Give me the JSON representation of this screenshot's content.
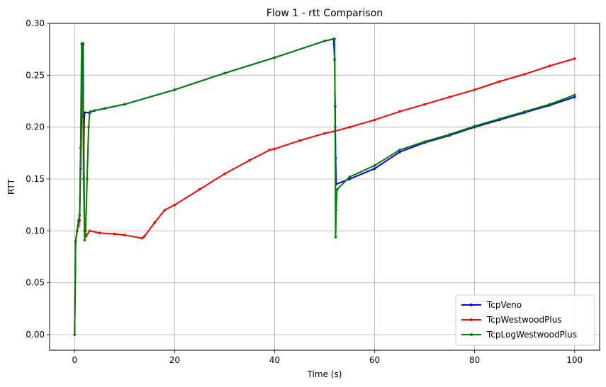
{
  "chart_data": {
    "type": "line",
    "title": "Flow 1 - rtt Comparison",
    "xlabel": "Time (s)",
    "ylabel": "RTT",
    "xlim": [
      -5,
      105
    ],
    "ylim": [
      -0.015,
      0.3
    ],
    "xticks": [
      0,
      20,
      40,
      60,
      80,
      100
    ],
    "xtick_labels": [
      "0",
      "20",
      "40",
      "60",
      "80",
      "100"
    ],
    "yticks": [
      0.0,
      0.05,
      0.1,
      0.15,
      0.2,
      0.25,
      0.3
    ],
    "ytick_labels": [
      "0.00",
      "0.05",
      "0.10",
      "0.15",
      "0.20",
      "0.25",
      "0.30"
    ],
    "grid": true,
    "legend_position": "bottom-right",
    "series": [
      {
        "name": "TcpVeno",
        "color": "#0000ff",
        "points": [
          [
            0,
            0
          ],
          [
            0.2,
            0.09
          ],
          [
            0.5,
            0.1
          ],
          [
            0.8,
            0.11
          ],
          [
            1.0,
            0.115
          ],
          [
            1.2,
            0.16
          ],
          [
            1.4,
            0.21
          ],
          [
            1.5,
            0.28
          ],
          [
            1.6,
            0.26
          ],
          [
            1.7,
            0.28
          ],
          [
            1.8,
            0.15
          ],
          [
            1.9,
            0.2
          ],
          [
            2.0,
            0.214
          ],
          [
            3,
            0.214
          ],
          [
            4,
            0.216
          ],
          [
            6,
            0.218
          ],
          [
            10,
            0.222
          ],
          [
            20,
            0.236
          ],
          [
            30,
            0.252
          ],
          [
            40,
            0.267
          ],
          [
            50,
            0.283
          ],
          [
            51.8,
            0.285
          ],
          [
            52.0,
            0.265
          ],
          [
            52.1,
            0.22
          ],
          [
            52.2,
            0.17
          ],
          [
            52.3,
            0.145
          ],
          [
            55,
            0.15
          ],
          [
            60,
            0.16
          ],
          [
            65,
            0.176
          ],
          [
            70,
            0.185
          ],
          [
            75,
            0.192
          ],
          [
            80,
            0.2
          ],
          [
            85,
            0.207
          ],
          [
            90,
            0.214
          ],
          [
            95,
            0.221
          ],
          [
            100,
            0.229
          ]
        ]
      },
      {
        "name": "TcpWestwoodPlus",
        "color": "#ff0000",
        "points": [
          [
            0,
            0
          ],
          [
            0.2,
            0.09
          ],
          [
            0.5,
            0.1
          ],
          [
            0.8,
            0.105
          ],
          [
            1.0,
            0.11
          ],
          [
            1.3,
            0.2
          ],
          [
            1.5,
            0.28
          ],
          [
            1.8,
            0.2
          ],
          [
            2.0,
            0.1
          ],
          [
            2.3,
            0.095
          ],
          [
            3,
            0.1
          ],
          [
            5,
            0.098
          ],
          [
            8,
            0.097
          ],
          [
            10,
            0.096
          ],
          [
            13.5,
            0.093
          ],
          [
            14,
            0.095
          ],
          [
            16,
            0.108
          ],
          [
            18,
            0.12
          ],
          [
            20,
            0.125
          ],
          [
            25,
            0.14
          ],
          [
            30,
            0.155
          ],
          [
            35,
            0.168
          ],
          [
            39,
            0.178
          ],
          [
            40,
            0.179
          ],
          [
            45,
            0.187
          ],
          [
            50,
            0.194
          ],
          [
            52,
            0.196
          ],
          [
            55,
            0.2
          ],
          [
            60,
            0.207
          ],
          [
            65,
            0.215
          ],
          [
            70,
            0.222
          ],
          [
            75,
            0.229
          ],
          [
            80,
            0.236
          ],
          [
            85,
            0.244
          ],
          [
            90,
            0.251
          ],
          [
            95,
            0.259
          ],
          [
            100,
            0.266
          ]
        ]
      },
      {
        "name": "TcpLogWestwoodPlus",
        "color": "#008000",
        "points": [
          [
            0,
            0
          ],
          [
            0.2,
            0.09
          ],
          [
            0.5,
            0.1
          ],
          [
            0.8,
            0.11
          ],
          [
            1.0,
            0.115
          ],
          [
            1.2,
            0.18
          ],
          [
            1.4,
            0.28
          ],
          [
            1.6,
            0.281
          ],
          [
            1.8,
            0.15
          ],
          [
            2.0,
            0.091
          ],
          [
            2.2,
            0.1
          ],
          [
            2.5,
            0.15
          ],
          [
            2.8,
            0.2
          ],
          [
            3.0,
            0.213
          ],
          [
            3.2,
            0.215
          ],
          [
            4,
            0.216
          ],
          [
            6,
            0.218
          ],
          [
            10,
            0.222
          ],
          [
            20,
            0.236
          ],
          [
            30,
            0.252
          ],
          [
            40,
            0.267
          ],
          [
            50,
            0.283
          ],
          [
            52.0,
            0.285
          ],
          [
            52.1,
            0.2
          ],
          [
            52.2,
            0.094
          ],
          [
            52.3,
            0.12
          ],
          [
            52.5,
            0.14
          ],
          [
            55,
            0.152
          ],
          [
            60,
            0.163
          ],
          [
            65,
            0.178
          ],
          [
            70,
            0.186
          ],
          [
            75,
            0.193
          ],
          [
            80,
            0.201
          ],
          [
            85,
            0.208
          ],
          [
            90,
            0.215
          ],
          [
            95,
            0.222
          ],
          [
            100,
            0.231
          ]
        ]
      }
    ]
  }
}
